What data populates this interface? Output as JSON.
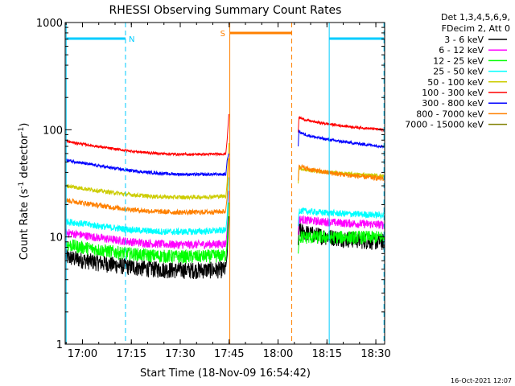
{
  "chart_data": {
    "type": "line",
    "title": "RHESSI Observing Summary Count Rates",
    "xlabel": "Start Time (18-Nov-09 16:54:42)",
    "ylabel_main": "Count Rate (s",
    "ylabel_sup1": "-1",
    "ylabel_mid": " detector",
    "ylabel_sup2": "-1",
    "ylabel_end": ")",
    "yscale": "log",
    "ylim": [
      1,
      1000
    ],
    "xlim_min": [
      0,
      98
    ],
    "xtick_labels": [
      {
        "label": "17:00",
        "min": 5.3
      },
      {
        "label": "17:15",
        "min": 20.3
      },
      {
        "label": "17:30",
        "min": 35.3
      },
      {
        "label": "17:45",
        "min": 50.3
      },
      {
        "label": "18:00",
        "min": 65.3
      },
      {
        "label": "18:15",
        "min": 80.3
      },
      {
        "label": "18:30",
        "min": 95.3
      }
    ],
    "ytick_labels": [
      {
        "label": "1",
        "value": 1
      },
      {
        "label": "10",
        "value": 10
      },
      {
        "label": "100",
        "value": 100
      },
      {
        "label": "1000",
        "value": 1000
      }
    ],
    "legend_header": [
      "Det 1,3,4,5,6,9,",
      "FDecim 2, Att 0"
    ],
    "legend_placement": "right",
    "series": [
      {
        "name": "3 - 6 keV",
        "color": "#000000",
        "pre": [
          6.5,
          5.2
        ],
        "post": [
          12,
          9
        ],
        "noise": 0.1
      },
      {
        "name": "6 - 12 keV",
        "color": "#ff00ff",
        "pre": [
          11,
          9
        ],
        "post": [
          15,
          13
        ],
        "noise": 0.05
      },
      {
        "name": "12 - 25 keV",
        "color": "#00ff00",
        "pre": [
          8.5,
          7
        ],
        "post": [
          10,
          10
        ],
        "noise": 0.08
      },
      {
        "name": "25 - 50 keV",
        "color": "#00ffff",
        "pre": [
          14,
          12
        ],
        "post": [
          18,
          16
        ],
        "noise": 0.04
      },
      {
        "name": "50 - 100 keV",
        "color": "#cccc00",
        "pre": [
          30,
          25
        ],
        "post": [
          45,
          37
        ],
        "noise": 0.025
      },
      {
        "name": "100 - 300 keV",
        "color": "#ff0000",
        "pre": [
          78,
          62
        ],
        "post": [
          135,
          100
        ],
        "noise": 0.015
      },
      {
        "name": "300 - 800 keV",
        "color": "#0000ff",
        "pre": [
          52,
          40
        ],
        "post": [
          100,
          70
        ],
        "noise": 0.018
      },
      {
        "name": "800 - 7000 keV",
        "color": "#ff8000",
        "pre": [
          22,
          18
        ],
        "post": [
          48,
          35
        ],
        "noise": 0.03
      },
      {
        "name": "7000 - 15000 keV",
        "color": "#808000",
        "pre": null,
        "post": null,
        "noise": 0
      }
    ],
    "data_gap_min": [
      50.5,
      71.5
    ],
    "annotations": [
      {
        "label": "N",
        "color": "#00ccff",
        "x_start_min": 0.3,
        "x_end_min": 18.5,
        "dashed_at_min": 18.5
      },
      {
        "label": "S",
        "color": "#ff8000",
        "x_start_min": 50.5,
        "x_end_min": 69.5,
        "dashed_at_min": 69.5
      },
      {
        "label": "",
        "color": "#00ccff",
        "x_start_min": 81,
        "x_end_min": 97.8,
        "dashed_at_min": 97.8
      }
    ],
    "timestamp": "16-Oct-2021 12:07"
  }
}
